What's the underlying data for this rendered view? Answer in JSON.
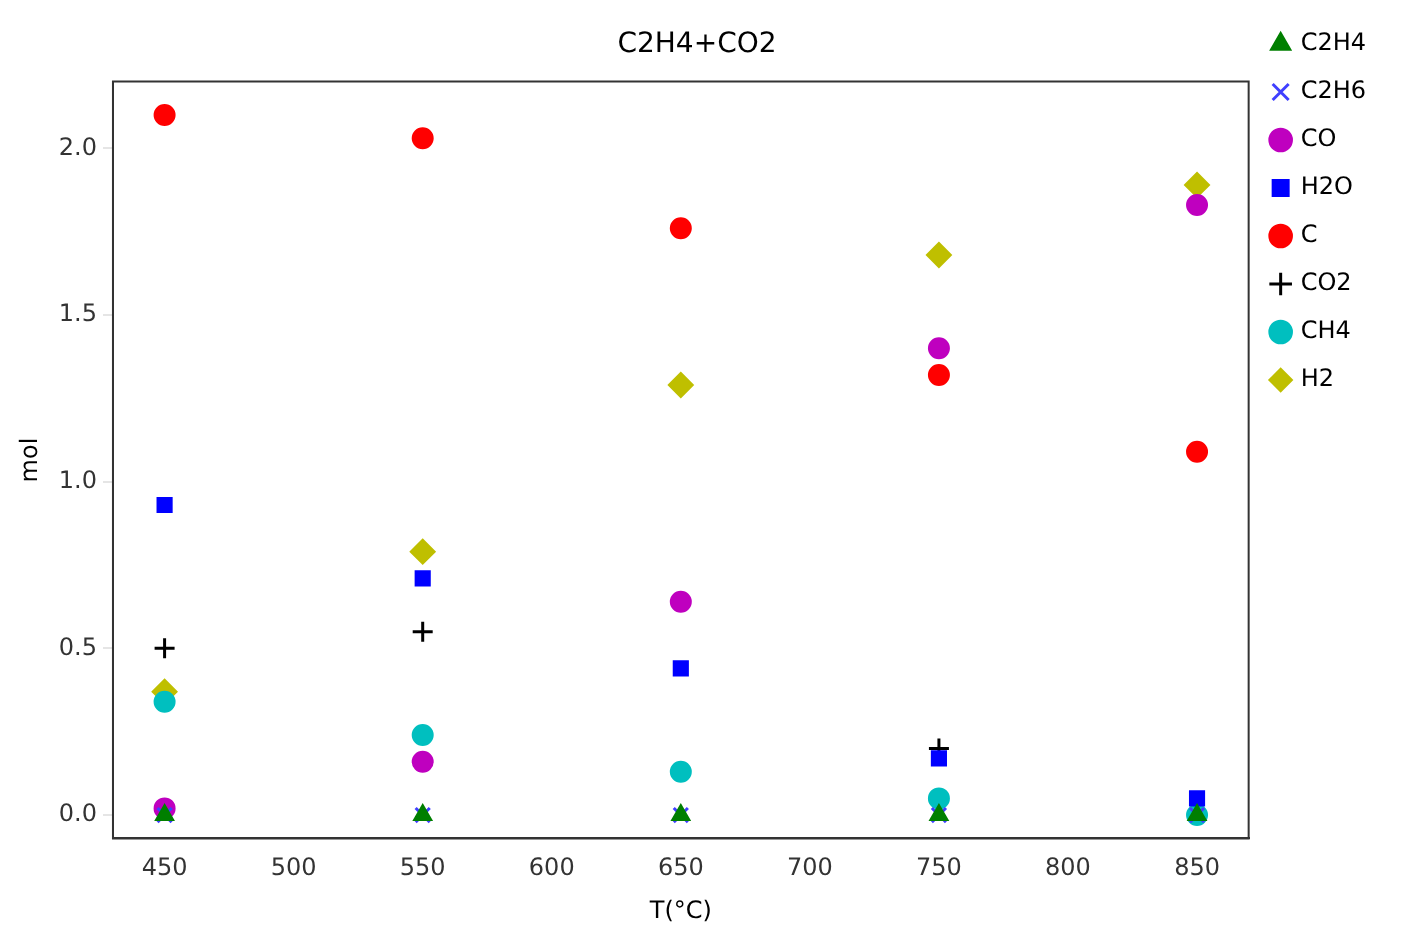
{
  "chart_data": {
    "type": "scatter",
    "title": "C2H4+CO2",
    "xlabel": "T(°C)",
    "ylabel": "mol",
    "x": [
      450,
      550,
      650,
      750,
      850
    ],
    "xlim": [
      430,
      870
    ],
    "xticks": [
      450,
      500,
      550,
      600,
      650,
      700,
      750,
      800,
      850
    ],
    "ylim": [
      -0.07,
      2.2
    ],
    "yticks": [
      {
        "value": 0,
        "label": "0.0"
      },
      {
        "value": 0.5,
        "label": "0.5"
      },
      {
        "value": 1,
        "label": "1.0"
      },
      {
        "value": 1.5,
        "label": "1.5"
      },
      {
        "value": 2,
        "label": "2.0"
      }
    ],
    "grid": false,
    "legend": "top right",
    "series": [
      {
        "name": "C2H4",
        "color": "#007f00",
        "marker": "triangle",
        "values": [
          0,
          0,
          0,
          0,
          0
        ]
      },
      {
        "name": "C2H6",
        "color": "#3f3fff",
        "marker": "cross",
        "values": [
          0,
          0,
          0,
          0,
          0
        ]
      },
      {
        "name": "CO",
        "color": "#bf00bf",
        "marker": "circle",
        "values": [
          0.02,
          0.16,
          0.64,
          1.4,
          1.83
        ]
      },
      {
        "name": "H2O",
        "color": "#0000ff",
        "marker": "square",
        "values": [
          0.93,
          0.71,
          0.44,
          0.17,
          0.05
        ]
      },
      {
        "name": "C",
        "color": "#ff0000",
        "marker": "circle",
        "values": [
          2.1,
          2.03,
          1.76,
          1.32,
          1.09
        ]
      },
      {
        "name": "CO2",
        "color": "#000000",
        "marker": "plus",
        "values": [
          0.5,
          0.55,
          null,
          0.2,
          null
        ]
      },
      {
        "name": "CH4",
        "color": "#00bfbf",
        "marker": "circle",
        "values": [
          0.34,
          0.24,
          0.13,
          0.05,
          0.0
        ]
      },
      {
        "name": "H2",
        "color": "#bfbf00",
        "marker": "diamond",
        "values": [
          0.37,
          0.79,
          1.29,
          1.68,
          1.89
        ]
      }
    ]
  }
}
